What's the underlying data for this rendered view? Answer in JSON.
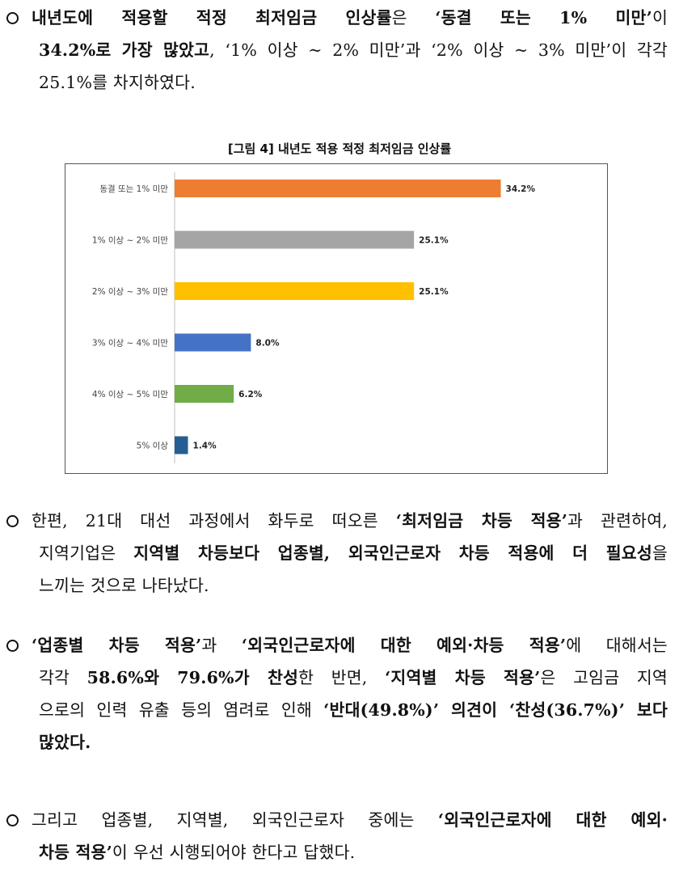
{
  "paragraph1": {
    "line1": [
      "내년도에 적용할 적정 최저임금 인상률",
      "은 ",
      "‘동결 또는 1% 미만’",
      "이"
    ],
    "line2": [
      "34.2%로 가장 많았고",
      ", ‘1% 이상 ~ 2% 미만’과 ‘2% 이상 ~ 3% 미만’이 각각"
    ],
    "line3": "25.1%를 차지하였다."
  },
  "chart_data": {
    "type": "bar",
    "orientation": "horizontal",
    "title": "[그림 4] 내년도 적용 적정 최저임금 인상률",
    "categories": [
      "동결 또는 1% 미만",
      "1% 이상 ~ 2% 미만",
      "2% 이상 ~ 3% 미만",
      "3% 이상 ~ 4% 미만",
      "4% 이상 ~ 5% 미만",
      "5% 이상"
    ],
    "values": [
      34.2,
      25.1,
      25.1,
      8.0,
      6.2,
      1.4
    ],
    "value_labels": [
      "34.2%",
      "25.1%",
      "25.1%",
      "8.0%",
      "6.2%",
      "1.4%"
    ],
    "colors": [
      "#ED7D31",
      "#A5A5A5",
      "#FFC000",
      "#4472C4",
      "#70AD47",
      "#255E91"
    ],
    "xlim": [
      0,
      40
    ],
    "grid": false,
    "legend": "none"
  },
  "paragraph2": {
    "line1": [
      "한편, 21대 대선 과정에서 화두로 떠오른 ",
      "‘최저임금 차등 적용’",
      "과 관련하여,"
    ],
    "line2": [
      "지역기업은 ",
      "지역별 차등보다 업종별, 외국인근로자 차등 적용에 더 필요성",
      "을"
    ],
    "line3": "느끼는 것으로 나타났다."
  },
  "paragraph3": {
    "line1": [
      "‘업종별 차등 적용’",
      "과 ",
      "‘외국인근로자에 대한 예외·차등 적용’",
      "에 대해서는"
    ],
    "line2": [
      "각각 ",
      "58.6%와 79.6%가 찬성",
      "한 반면, ",
      "‘지역별 차등 적용’",
      "은 고임금 지역"
    ],
    "line3": [
      "으로의 인력 유출 등의 염려로 인해 ",
      "‘반대(49.8%)’ 의견이 ‘찬성(36.7%)’ 보다"
    ],
    "line4": "많았다."
  },
  "paragraph4": {
    "line1": [
      "그리고 업종별, 지역별, 외국인근로자 중에는 ",
      "‘외국인근로자에 대한 예외·"
    ],
    "line2": [
      "차등 적용’",
      "이 우선 시행되어야 한다고 답했다."
    ]
  }
}
